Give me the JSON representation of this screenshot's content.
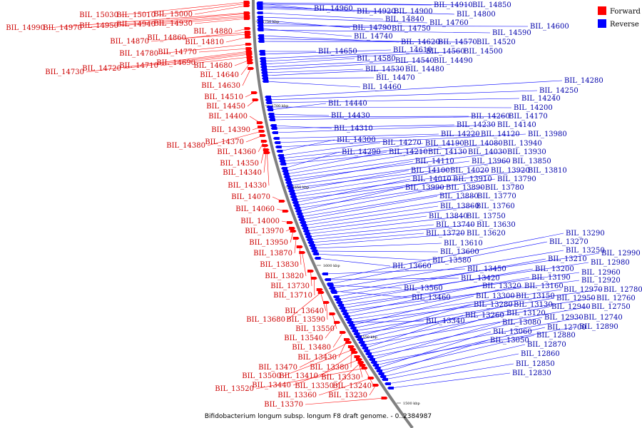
{
  "caption": "Bifidobacterium longum subsp. longum F8 draft genome. - 0..2384987",
  "legend": [
    {
      "label": "Forward",
      "color": "#ff0000"
    },
    {
      "label": "Reverse",
      "color": "#0000ff"
    }
  ],
  "colors": {
    "forward": "#ff0000",
    "reverse": "#0000ff",
    "backbone": "#808080",
    "label_forward": "#cc0000",
    "label_reverse": "#0000aa"
  },
  "ruler_marks": [
    "1750 kbp",
    "1700 kbp",
    "1650 kbp",
    "1600 kbp",
    "1550 kbp",
    "1500 kbp"
  ],
  "forward_genes": [
    "BIL_15030",
    "BIL_15010",
    "BIL_15000",
    "BIL_14990",
    "BIL_14970",
    "BIL_14950",
    "BIL_14940",
    "BIL_14930",
    "BIL_14880",
    "BIL_14870",
    "BIL_14860",
    "BIL_14810",
    "BIL_14780",
    "BIL_14770",
    "BIL_14730",
    "BIL_14720",
    "BIL_14710",
    "BIL_14690",
    "BIL_14680",
    "BIL_14640",
    "BIL_14630",
    "BIL_14510",
    "BIL_14450",
    "BIL_14400",
    "BIL_14390",
    "BIL_14380",
    "BIL_14370",
    "BIL_14360",
    "BIL_14350",
    "BIL_14340",
    "BIL_14330",
    "BIL_14070",
    "BIL_14060",
    "BIL_14000",
    "BIL_13970",
    "BIL_13950",
    "BIL_13870",
    "BIL_13830",
    "BIL_13820",
    "BIL_13730",
    "BIL_13710",
    "BIL_13640",
    "BIL_13680",
    "BIL_13590",
    "BIL_13550",
    "BIL_13540",
    "BIL_13480",
    "BIL_13430",
    "BIL_13470",
    "BIL_13380",
    "BIL_13500",
    "BIL_13410",
    "BIL_13330",
    "BIL_13440",
    "BIL_13350",
    "BIL_13240",
    "BIL_13520",
    "BIL_13360",
    "BIL_13230",
    "BIL_13370"
  ],
  "reverse_genes": [
    "BIL_14960",
    "BIL_14920",
    "BIL_14900",
    "BIL_14910",
    "BIL_14850",
    "BIL_14800",
    "BIL_14840",
    "BIL_14760",
    "BIL_14790",
    "BIL_14750",
    "BIL_14600",
    "BIL_14740",
    "BIL_14590",
    "BIL_14620",
    "BIL_14570",
    "BIL_14520",
    "BIL_14650",
    "BIL_14610",
    "BIL_14560",
    "BIL_14500",
    "BIL_14580",
    "BIL_14540",
    "BIL_14490",
    "BIL_14530",
    "BIL_14480",
    "BIL_14470",
    "BIL_14460",
    "BIL_14280",
    "BIL_14250",
    "BIL_14240",
    "BIL_14440",
    "BIL_14200",
    "BIL_14430",
    "BIL_14260",
    "BIL_14170",
    "BIL_14310",
    "BIL_14230",
    "BIL_14140",
    "BIL_14220",
    "BIL_14120",
    "BIL_13980",
    "BIL_14300",
    "BIL_14270",
    "BIL_14190",
    "BIL_14080",
    "BIL_13940",
    "BIL_14290",
    "BIL_14210",
    "BIL_14130",
    "BIL_14030",
    "BIL_13930",
    "BIL_14110",
    "BIL_13960",
    "BIL_13850",
    "BIL_14100",
    "BIL_14020",
    "BIL_13920",
    "BIL_13810",
    "BIL_14010",
    "BIL_13910",
    "BIL_13790",
    "BIL_13990",
    "BIL_13890",
    "BIL_13780",
    "BIL_13880",
    "BIL_13770",
    "BIL_13860",
    "BIL_13760",
    "BIL_13840",
    "BIL_13750",
    "BIL_13740",
    "BIL_13630",
    "BIL_13720",
    "BIL_13620",
    "BIL_13610",
    "BIL_13600",
    "BIL_13580",
    "BIL_13660",
    "BIL_13290",
    "BIL_13270",
    "BIL_13250",
    "BIL_12990",
    "BIL_13210",
    "BIL_12980",
    "BIL_13450",
    "BIL_13200",
    "BIL_12960",
    "BIL_13420",
    "BIL_13190",
    "BIL_12920",
    "BIL_13560",
    "BIL_13320",
    "BIL_13160",
    "BIL_12970",
    "BIL_12780",
    "BIL_13460",
    "BIL_13300",
    "BIL_13150",
    "BIL_12950",
    "BIL_12760",
    "BIL_13280",
    "BIL_13130",
    "BIL_12940",
    "BIL_12750",
    "BIL_13260",
    "BIL_13120",
    "BIL_12930",
    "BIL_12740",
    "BIL_13340",
    "BIL_13080",
    "BIL_12890",
    "BIL_12700",
    "BIL_13060",
    "BIL_12880",
    "BIL_13050",
    "BIL_12870",
    "BIL_12860",
    "BIL_12850",
    "BIL_12830"
  ]
}
